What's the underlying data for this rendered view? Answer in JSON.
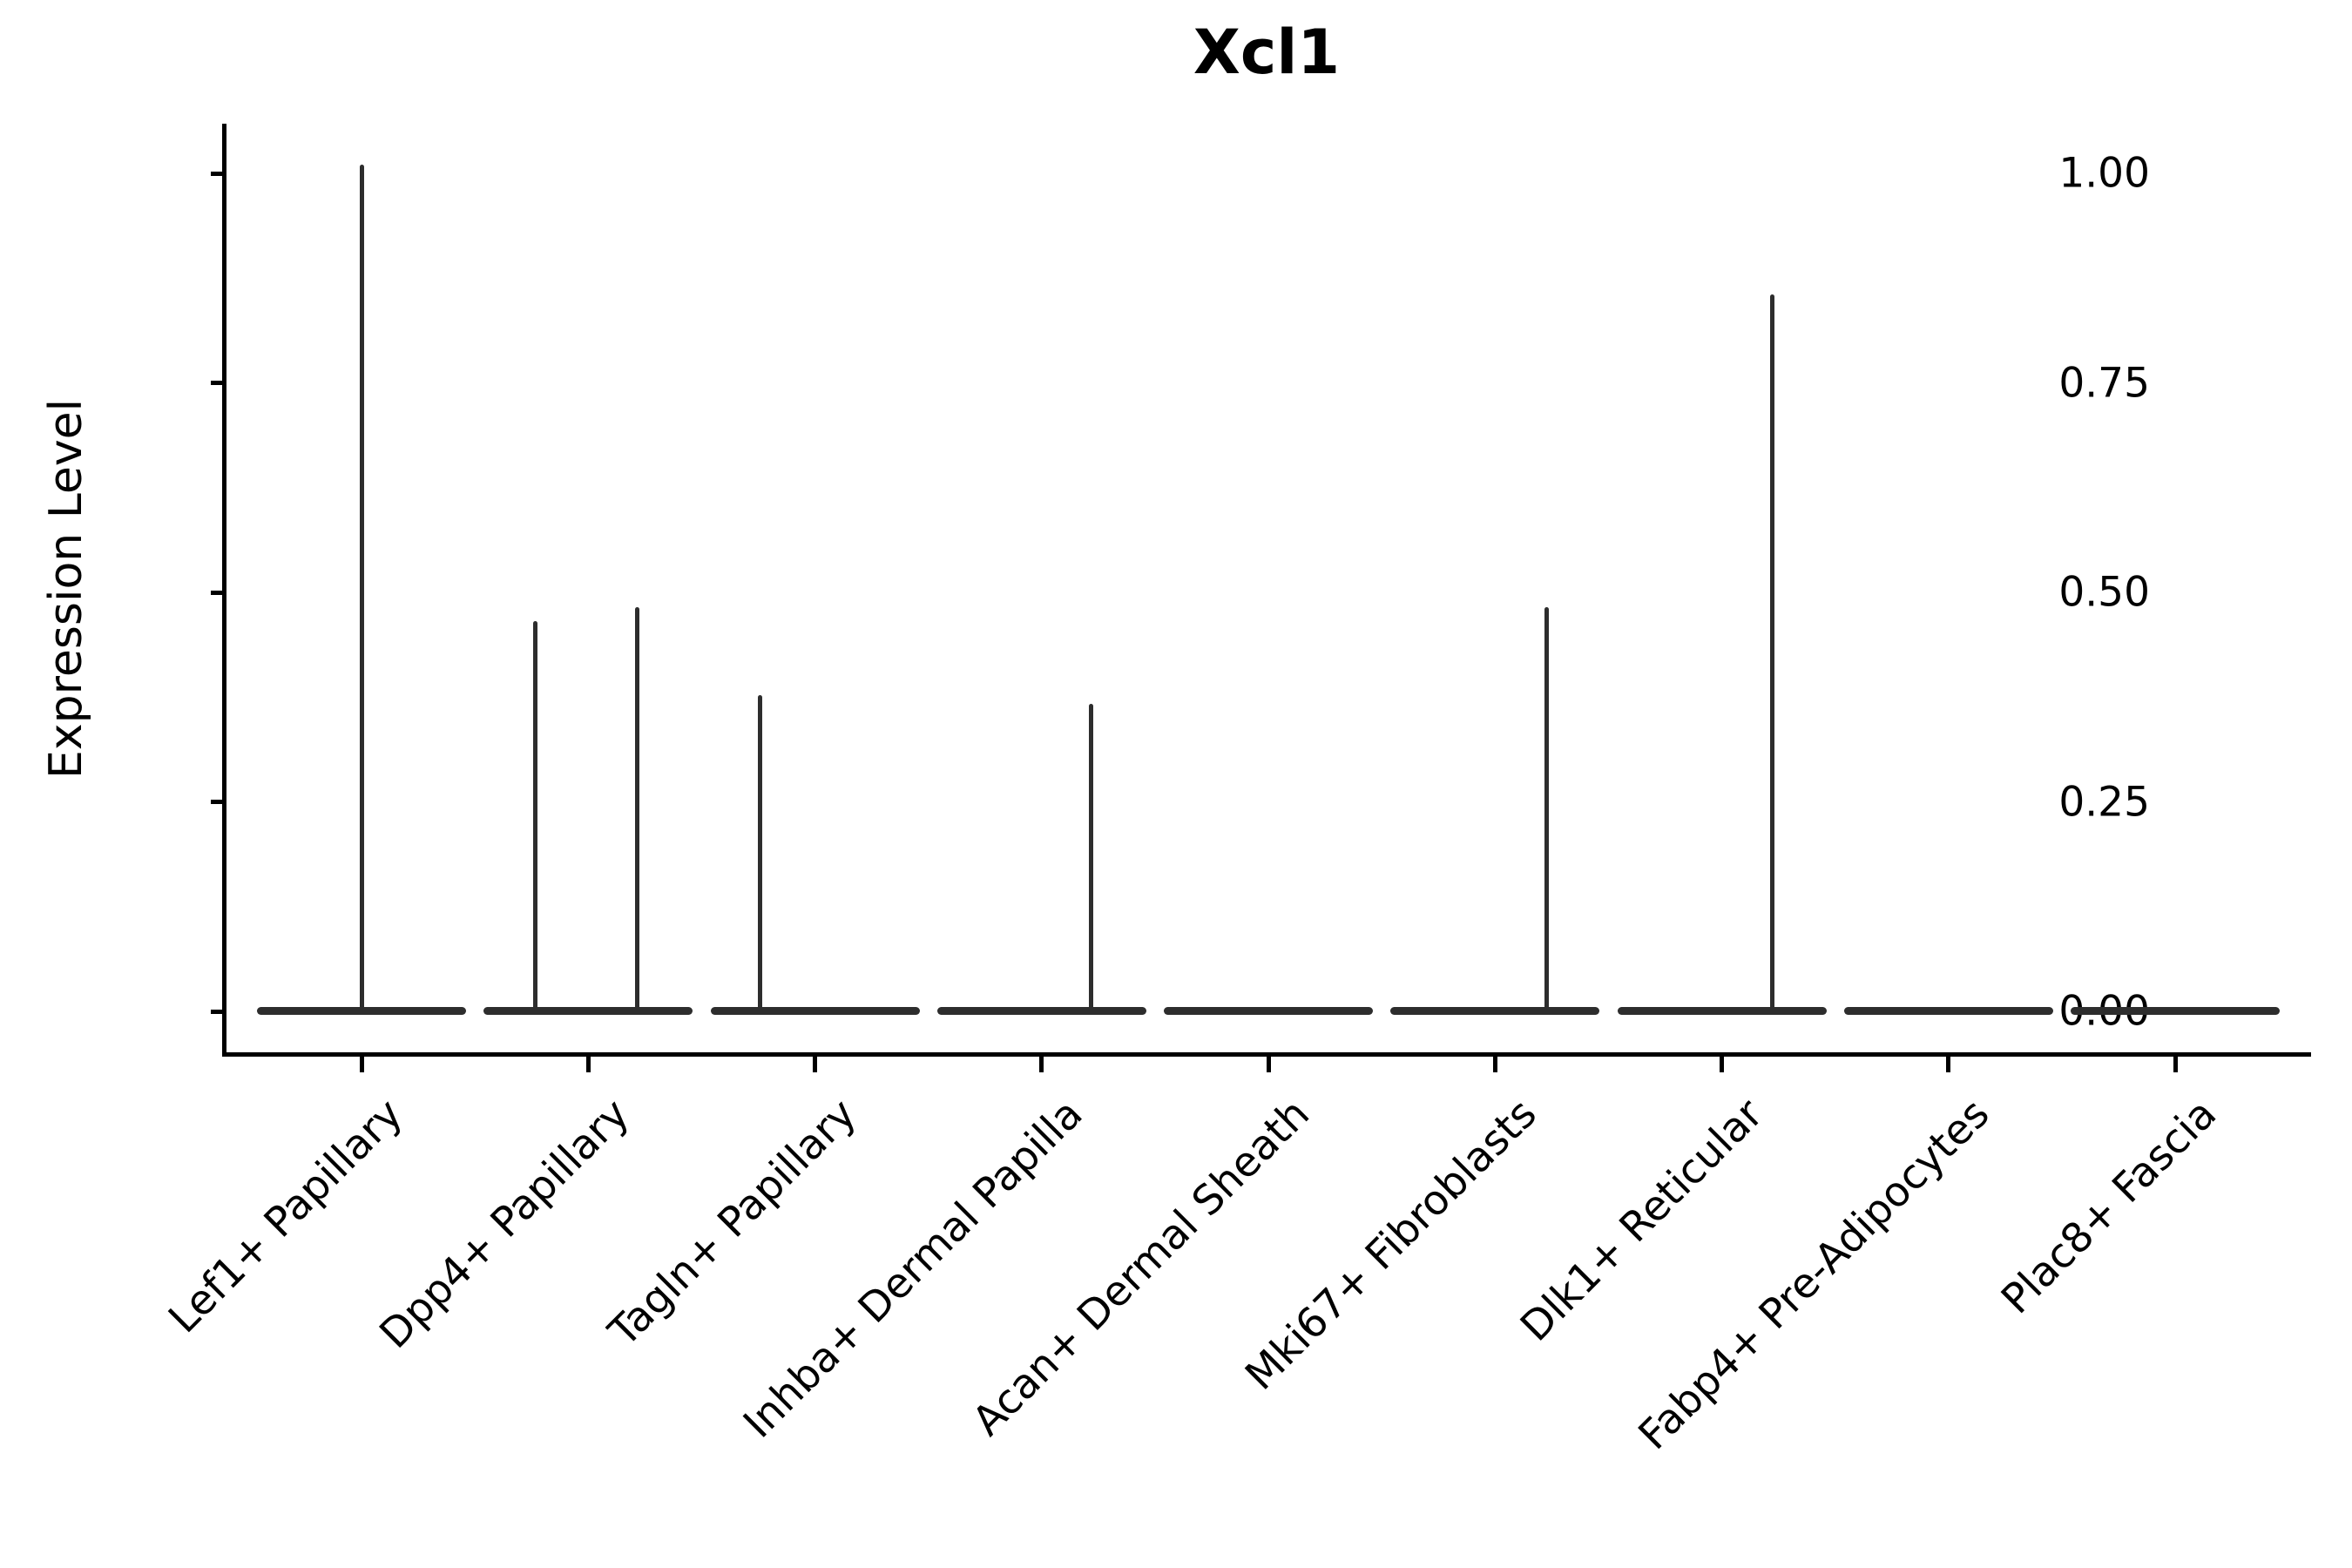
{
  "title": "Xcl1",
  "y_axis": {
    "label": "Expression Level",
    "tick_labels": [
      "0.00",
      "0.25",
      "0.50",
      "0.75",
      "1.00"
    ]
  },
  "x_axis": {
    "categories": [
      "Lef1+ Papillary",
      "Dpp4+ Papillary",
      "Tagln+ Papillary",
      "Inhba+ Dermal Papilla",
      "Acan+ Dermal Sheath",
      "Mki67+ Fibroblasts",
      "Dlk1+ Reticular",
      "Fabp4+ Pre-Adipocytes",
      "Plac8+ Fascia"
    ]
  },
  "colors": {
    "violin": "#2d2d2d",
    "axis": "#000000",
    "text": "#000000",
    "background": "#ffffff"
  },
  "chart_data": {
    "type": "violin",
    "title": "Xcl1",
    "xlabel": "",
    "ylabel": "Expression Level",
    "ylim": [
      -0.05,
      1.06
    ],
    "yticks": [
      0.0,
      0.25,
      0.5,
      0.75,
      1.0
    ],
    "grid": false,
    "legend": null,
    "violin_width_fraction": 0.92,
    "categories": [
      "Lef1+ Papillary",
      "Dpp4+ Papillary",
      "Tagln+ Papillary",
      "Inhba+ Dermal Papilla",
      "Acan+ Dermal Sheath",
      "Mki67+ Fibroblasts",
      "Dlk1+ Reticular",
      "Fabp4+ Pre-Adipocytes",
      "Plac8+ Fascia"
    ],
    "series": [
      {
        "name": "Lef1+ Papillary",
        "base_value": 0,
        "max_value": 1.01,
        "spikes": [
          {
            "offset": 0.0,
            "value": 1.01
          }
        ]
      },
      {
        "name": "Dpp4+ Papillary",
        "base_value": 0,
        "max_value": 0.482,
        "spikes": [
          {
            "offset": -0.235,
            "value": 0.466
          },
          {
            "offset": 0.215,
            "value": 0.482
          }
        ]
      },
      {
        "name": "Tagln+ Papillary",
        "base_value": 0,
        "max_value": 0.377,
        "spikes": [
          {
            "offset": -0.242,
            "value": 0.377
          }
        ]
      },
      {
        "name": "Inhba+ Dermal Papilla",
        "base_value": 0,
        "max_value": 0.367,
        "spikes": [
          {
            "offset": 0.219,
            "value": 0.367
          }
        ]
      },
      {
        "name": "Acan+ Dermal Sheath",
        "base_value": 0,
        "max_value": 0.0,
        "spikes": []
      },
      {
        "name": "Mki67+ Fibroblasts",
        "base_value": 0,
        "max_value": 0.482,
        "spikes": [
          {
            "offset": 0.227,
            "value": 0.482
          }
        ]
      },
      {
        "name": "Dlk1+ Reticular",
        "base_value": 0,
        "max_value": 0.855,
        "spikes": [
          {
            "offset": 0.223,
            "value": 0.855
          }
        ]
      },
      {
        "name": "Fabp4+ Pre-Adipocytes",
        "base_value": 0,
        "max_value": 0.0,
        "spikes": []
      },
      {
        "name": "Plac8+ Fascia",
        "base_value": 0,
        "max_value": 0.0,
        "spikes": []
      }
    ],
    "description": "Violin plot of Xcl1 expression per fibroblast cluster; every violin is collapsed to a flat bar at 0 with thin vertical spikes from rare expressing cells."
  }
}
